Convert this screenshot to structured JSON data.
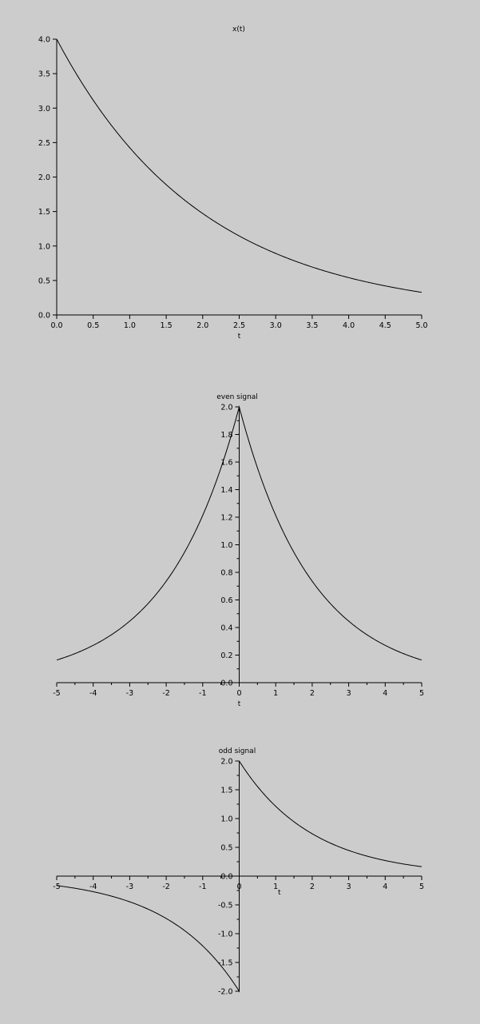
{
  "chart_data": [
    {
      "type": "line",
      "title": "x(t)",
      "xlabel": "t",
      "ylabel": "",
      "xlim": [
        0,
        5
      ],
      "ylim": [
        0,
        4
      ],
      "grid": false,
      "x_ticks": [
        "0.0",
        "0.5",
        "1.0",
        "1.5",
        "2.0",
        "2.5",
        "3.0",
        "3.5",
        "4.0",
        "4.5",
        "5.0"
      ],
      "y_ticks": [
        "0.0",
        "0.5",
        "1.0",
        "1.5",
        "2.0",
        "2.5",
        "3.0",
        "3.5",
        "4.0"
      ],
      "function": "4*exp(-0.5*t)",
      "series": [
        {
          "name": "x(t)",
          "x": [
            0,
            0.5,
            1,
            1.5,
            2,
            2.5,
            3,
            3.5,
            4,
            4.5,
            5
          ],
          "y": [
            4.0,
            3.12,
            2.43,
            1.89,
            1.47,
            1.15,
            0.89,
            0.7,
            0.54,
            0.42,
            0.33
          ]
        }
      ]
    },
    {
      "type": "line",
      "title": "even signal",
      "xlabel": "t",
      "ylabel": "",
      "xlim": [
        -5,
        5
      ],
      "ylim": [
        0,
        2
      ],
      "grid": false,
      "x_ticks": [
        "-5",
        "-4",
        "-3",
        "-2",
        "-1",
        "0",
        "1",
        "2",
        "3",
        "4",
        "5"
      ],
      "y_ticks": [
        "0.0",
        "0.2",
        "0.4",
        "0.6",
        "0.8",
        "1.0",
        "1.2",
        "1.4",
        "1.6",
        "1.8",
        "2.0"
      ],
      "function": "2*exp(-0.5*|t|)",
      "series": [
        {
          "name": "even signal",
          "x": [
            -5,
            -4,
            -3,
            -2,
            -1,
            0,
            1,
            2,
            3,
            4,
            5
          ],
          "y": [
            0.16,
            0.27,
            0.45,
            0.74,
            1.21,
            2.0,
            1.21,
            0.74,
            0.45,
            0.27,
            0.16
          ]
        }
      ]
    },
    {
      "type": "line",
      "title": "odd signal",
      "xlabel": "t",
      "ylabel": "",
      "xlim": [
        -5,
        5
      ],
      "ylim": [
        -2,
        2
      ],
      "grid": false,
      "x_ticks": [
        "-5",
        "-4",
        "-3",
        "-2",
        "-1",
        "0",
        "1",
        "2",
        "3",
        "4",
        "5"
      ],
      "y_ticks": [
        "-2.0",
        "-1.5",
        "-1.0",
        "-0.5",
        "0.0",
        "0.5",
        "1.0",
        "1.5",
        "2.0"
      ],
      "function": "sign(t)*2*exp(-0.5*|t|)",
      "series": [
        {
          "name": "odd signal",
          "x": [
            -5,
            -4,
            -3,
            -2,
            -1,
            0,
            1,
            2,
            3,
            4,
            5
          ],
          "y": [
            -0.16,
            -0.27,
            -0.45,
            -0.74,
            -1.21,
            2.0,
            1.21,
            0.74,
            0.45,
            0.27,
            0.16
          ]
        }
      ]
    }
  ]
}
